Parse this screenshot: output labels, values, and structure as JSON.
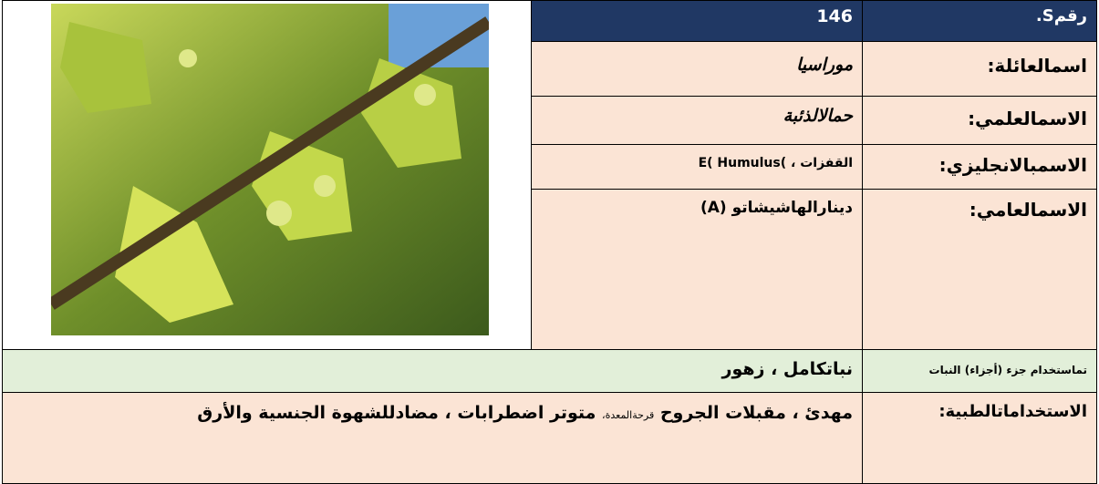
{
  "card": {
    "number": {
      "label": "رقمS.",
      "value": "146"
    },
    "rows": [
      {
        "label": "اسمالعائلة:",
        "value": "موراسيا"
      },
      {
        "label": "الاسمالعلمي:",
        "value": "حمالالذئبة"
      },
      {
        "label": "الاسمبالانجليزي:",
        "value": "القفزات ، )E( Humulus"
      },
      {
        "label": "الاسمالعامي:",
        "value": "دينارالهاشيشاتو (A)"
      }
    ],
    "parts_used": {
      "label": "تماستخدام جزء (أجزاء) النبات",
      "value": "نباتكامل ، زهور"
    },
    "medical_uses": {
      "label": "الاستخداماتالطبية:",
      "value": [
        "مهدئ ، مقبلات الجروح",
        "قرحةالمعدة،",
        "متوتر اضطرابات ، مضادللشهوة الجنسية والأرق"
      ]
    }
  }
}
